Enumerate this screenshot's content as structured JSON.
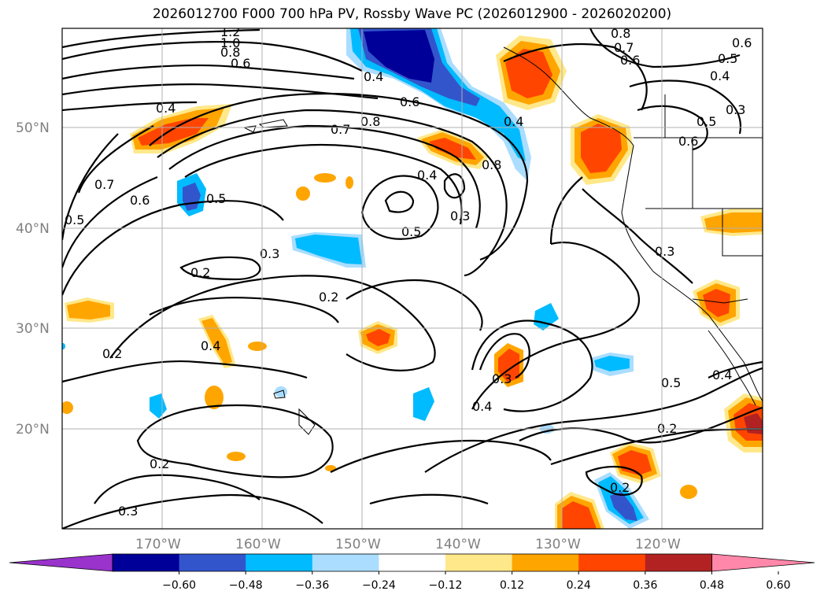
{
  "title": "2026012700 F000 700 hPa PV, Rossby Wave PC (2026012900 - 2026020200)",
  "lat_labels": [
    "50°N",
    "40°N",
    "30°N",
    "20°N"
  ],
  "lon_labels": [
    "170°W",
    "160°W",
    "150°W",
    "140°W",
    "130°W",
    "120°W"
  ],
  "colorbar": {
    "ticks": [
      "−0.60",
      "−0.48",
      "−0.36",
      "−0.24",
      "−0.12",
      "0.12",
      "0.24",
      "0.36",
      "0.48",
      "0.60"
    ],
    "colors": [
      "#9933cc",
      "#000099",
      "#3355cc",
      "#00bbff",
      "#aaddff",
      "#ffffff",
      "#ffe88a",
      "#ffa500",
      "#ff4500",
      "#b22222",
      "#ff88aa"
    ]
  },
  "contour_labels": [
    "1.2",
    "1.0",
    "0.8",
    "0.6",
    "0.4",
    "0.6",
    "0.4",
    "0.7",
    "0.8",
    "0.4",
    "0.8",
    "0.3",
    "0.5",
    "0.5",
    "0.3",
    "0.2",
    "0.2",
    "0.7",
    "0.6",
    "0.5",
    "0.4",
    "0.2",
    "0.4",
    "0.3",
    "0.4",
    "0.5",
    "0.4",
    "0.2",
    "0.2",
    "0.3",
    "0.2",
    "0.3",
    "0.8",
    "0.7",
    "0.6",
    "0.6",
    "0.5",
    "0.4",
    "0.3",
    "0.5",
    "0.6"
  ]
}
